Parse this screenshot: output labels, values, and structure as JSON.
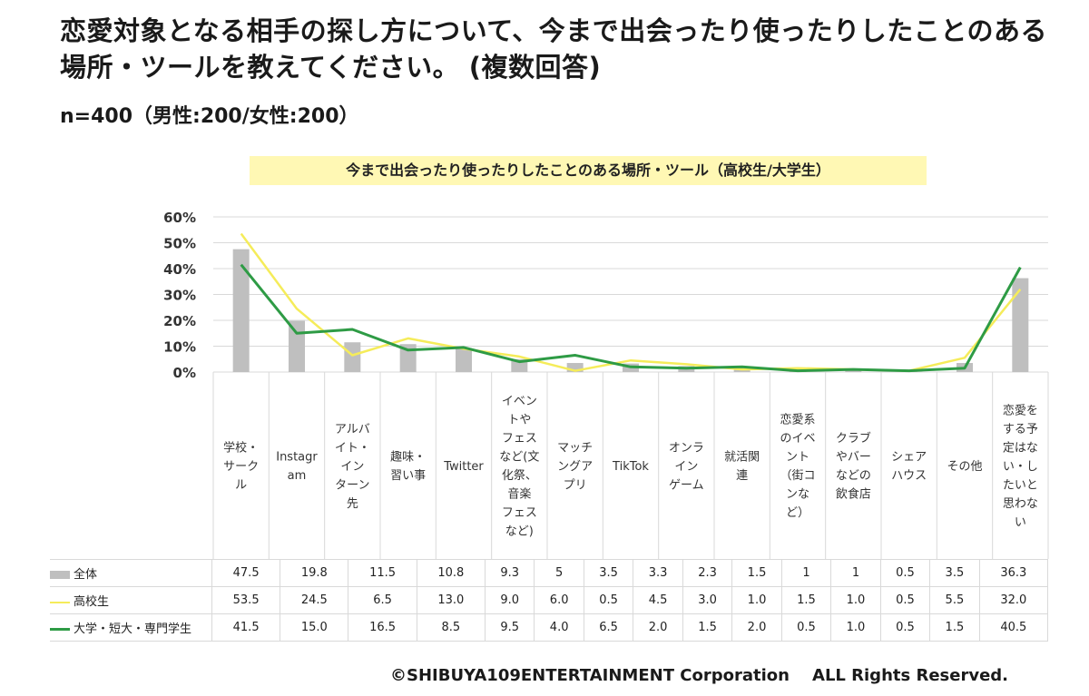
{
  "header": {
    "title": "恋愛対象となる相手の探し方について、今まで出会ったり使ったりしたことのある場所・ツールを教えてください。 (複数回答)",
    "sample": "n=400（男性:200/女性:200）"
  },
  "footer": {
    "copyright": "©SHIBUYA109ENTERTAINMENT Corporation",
    "rights": "ALL Rights Reserved."
  },
  "chart_data": {
    "type": "bar",
    "title": "今まで出会ったり使ったりしたことのある場所・ツール（高校生/大学生）",
    "xlabel": "",
    "ylabel": "",
    "ylim": [
      0,
      60
    ],
    "yticks": [
      "0%",
      "10%",
      "20%",
      "30%",
      "40%",
      "50%",
      "60%"
    ],
    "grid": true,
    "legend": "table-left",
    "categories": [
      "学校・サークル",
      "Instagram",
      "アルバイト・インターン先",
      "趣味・習い事",
      "Twitter",
      "イベントやフェスなど(文化祭、音楽フェスなど)",
      "マッチングアプリ",
      "TikTok",
      "オンラインゲーム",
      "就活関連",
      "恋愛系のイベント（街コンなど）",
      "クラブやバーなどの飲食店",
      "シェアハウス",
      "その他",
      "恋愛をする予定はない・したいと思わない"
    ],
    "category_label_lines": [
      [
        "学校・",
        "サーク",
        "ル"
      ],
      [
        "Instagr",
        "am"
      ],
      [
        "アルバ",
        "イト・",
        "イン",
        "ターン",
        "先"
      ],
      [
        "趣味・",
        "習い事"
      ],
      [
        "Twitter"
      ],
      [
        "イベン",
        "トや",
        "フェス",
        "など(文",
        "化祭、",
        "音楽",
        "フェス",
        "など)"
      ],
      [
        "マッチ",
        "ングア",
        "プリ"
      ],
      [
        "TikTok"
      ],
      [
        "オンラ",
        "イン",
        "ゲーム"
      ],
      [
        "就活関",
        "連"
      ],
      [
        "恋愛系",
        "のイベ",
        "ント",
        "（街コ",
        "ンな",
        "ど）"
      ],
      [
        "クラブ",
        "やバー",
        "などの",
        "飲食店"
      ],
      [
        "シェア",
        "ハウス"
      ],
      [
        "その他"
      ],
      [
        "恋愛を",
        "する予",
        "定はな",
        "い・し",
        "たいと",
        "思わな",
        "い"
      ]
    ],
    "series": [
      {
        "name": "全体",
        "mark": "bar",
        "color": "#bfbfbf",
        "values": [
          47.5,
          19.8,
          11.5,
          10.8,
          9.3,
          5,
          3.5,
          3.3,
          2.3,
          1.5,
          1,
          1,
          0.5,
          3.5,
          36.3
        ],
        "labels": [
          "47.5",
          "19.8",
          "11.5",
          "10.8",
          "9.3",
          "5",
          "3.5",
          "3.3",
          "2.3",
          "1.5",
          "1",
          "1",
          "0.5",
          "3.5",
          "36.3"
        ]
      },
      {
        "name": "高校生",
        "mark": "line",
        "color": "#f5ec5a",
        "values": [
          53.5,
          24.5,
          6.5,
          13.0,
          9.0,
          6.0,
          0.5,
          4.5,
          3.0,
          1.0,
          1.5,
          1.0,
          0.5,
          5.5,
          32.0
        ],
        "labels": [
          "53.5",
          "24.5",
          "6.5",
          "13.0",
          "9.0",
          "6.0",
          "0.5",
          "4.5",
          "3.0",
          "1.0",
          "1.5",
          "1.0",
          "0.5",
          "5.5",
          "32.0"
        ]
      },
      {
        "name": "大学・短大・専門学生",
        "mark": "line",
        "color": "#2e9b45",
        "values": [
          41.5,
          15.0,
          16.5,
          8.5,
          9.5,
          4.0,
          6.5,
          2.0,
          1.5,
          2.0,
          0.5,
          1.0,
          0.5,
          1.5,
          40.5
        ],
        "labels": [
          "41.5",
          "15.0",
          "16.5",
          "8.5",
          "9.5",
          "4.0",
          "6.5",
          "2.0",
          "1.5",
          "2.0",
          "0.5",
          "1.0",
          "0.5",
          "1.5",
          "40.5"
        ]
      }
    ]
  }
}
